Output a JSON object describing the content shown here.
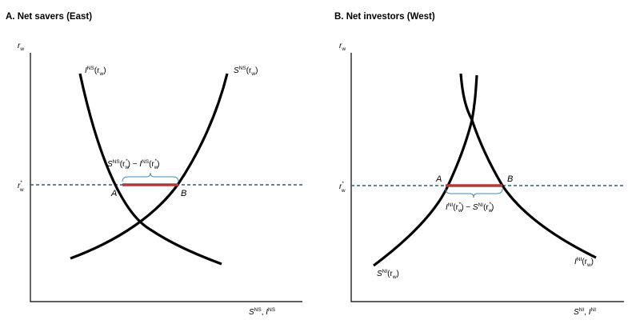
{
  "colors": {
    "curve": "#000000",
    "world_rate_line": "#1f5f8b",
    "gap_segment": "#b03a3a",
    "brace": "#3a8fc4"
  },
  "panel_a": {
    "title": "A. Net savers (East)",
    "y_axis": {
      "base": "r",
      "sub": "w"
    },
    "x_axis": {
      "s_base": "S",
      "s_sup": "NS",
      "sep": ", ",
      "i_base": "I",
      "i_sup": "NS"
    },
    "rate_label": {
      "base": "r",
      "sup": "*",
      "sub": "w"
    },
    "investment_curve": {
      "base": "I",
      "sup": "NS",
      "open": "(r",
      "sub": "w",
      "close": ")"
    },
    "saving_curve": {
      "base": "S",
      "sup": "NS",
      "open": "(r",
      "sub": "w",
      "close": ")"
    },
    "gap_label": {
      "t1": "S",
      "t1_sup": "NS",
      "t2": "(r",
      "t2_sub": "w",
      "t2_sup": "*",
      "t3": ") − ",
      "t4": "I",
      "t4_sup": "NS",
      "t5": "(r",
      "t5_sub": "w",
      "t5_sup": "*",
      "t6": ")"
    },
    "point_a": "A",
    "point_b": "B"
  },
  "panel_b": {
    "title": "B. Net investors (West)",
    "y_axis": {
      "base": "r",
      "sub": "w"
    },
    "x_axis": {
      "s_base": "S",
      "s_sup": "NI",
      "sep": ", ",
      "i_base": "I",
      "i_sup": "NI"
    },
    "rate_label": {
      "base": "r",
      "sup": "*",
      "sub": "w"
    },
    "investment_curve": {
      "base": "I",
      "sup": "NI",
      "open": "(r",
      "sub": "w",
      "close": ")"
    },
    "saving_curve": {
      "base": "S",
      "sup": "NI",
      "open": "(r",
      "sub": "w",
      "close": ")"
    },
    "gap_label": {
      "t1": "I",
      "t1_sup": "NI",
      "t2": "(r",
      "t2_sub": "w",
      "t2_sup": "*",
      "t3": ") − ",
      "t4": "S",
      "t4_sup": "NI",
      "t5": "(r",
      "t5_sub": "w",
      "t5_sup": "*",
      "t6": ")"
    },
    "point_a": "A",
    "point_b": "B"
  }
}
